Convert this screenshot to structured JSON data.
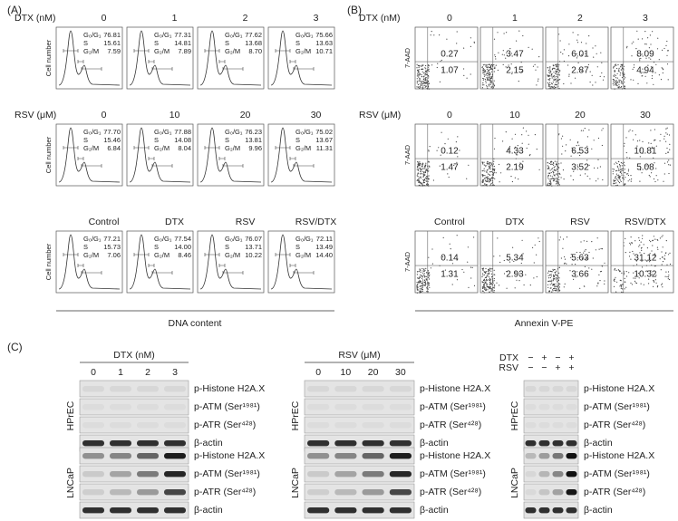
{
  "panel_a": {
    "label": "(A)",
    "x_label": "DNA content",
    "y_label": "Cell number",
    "phase_labels": [
      "G₀/G₁",
      "S",
      "G₂/M"
    ],
    "rows": [
      {
        "title": "DTX (nM)",
        "columns": [
          {
            "name": "0",
            "values": [
              "76.81",
              "15.61",
              "7.59"
            ]
          },
          {
            "name": "1",
            "values": [
              "77.31",
              "14.81",
              "7.89"
            ]
          },
          {
            "name": "2",
            "values": [
              "77.62",
              "13.68",
              "8.70"
            ]
          },
          {
            "name": "3",
            "values": [
              "75.66",
              "13.63",
              "10.71"
            ]
          }
        ]
      },
      {
        "title": "RSV (μM)",
        "columns": [
          {
            "name": "0",
            "values": [
              "77.70",
              "15.46",
              "6.84"
            ]
          },
          {
            "name": "10",
            "values": [
              "77.88",
              "14.08",
              "8.04"
            ]
          },
          {
            "name": "20",
            "values": [
              "76.23",
              "13.81",
              "9.96"
            ]
          },
          {
            "name": "30",
            "values": [
              "75.02",
              "13.67",
              "11.31"
            ]
          }
        ]
      },
      {
        "columns": [
          {
            "name": "Control",
            "values": [
              "77.21",
              "15.73",
              "7.06"
            ]
          },
          {
            "name": "DTX",
            "values": [
              "77.54",
              "14.00",
              "8.46"
            ]
          },
          {
            "name": "RSV",
            "values": [
              "76.07",
              "13.71",
              "10.22"
            ]
          },
          {
            "name": "RSV/DTX",
            "values": [
              "72.11",
              "13.49",
              "14.40"
            ]
          }
        ]
      }
    ]
  },
  "panel_b": {
    "label": "(B)",
    "x_label": "Annexin V-PE",
    "y_label": "7-AAD",
    "rows": [
      {
        "title": "DTX (nM)",
        "columns": [
          {
            "name": "0",
            "late": "0.27",
            "early": "1.07"
          },
          {
            "name": "1",
            "late": "3.47",
            "early": "2.15"
          },
          {
            "name": "2",
            "late": "6.01",
            "early": "2.87"
          },
          {
            "name": "3",
            "late": "8.09",
            "early": "4.94"
          }
        ]
      },
      {
        "title": "RSV (μM)",
        "columns": [
          {
            "name": "0",
            "late": "0.12",
            "early": "1.47"
          },
          {
            "name": "10",
            "late": "4.33",
            "early": "2.19"
          },
          {
            "name": "20",
            "late": "6.53",
            "early": "3.52"
          },
          {
            "name": "30",
            "late": "10.81",
            "early": "5.08"
          }
        ]
      },
      {
        "columns": [
          {
            "name": "Control",
            "late": "0.14",
            "early": "1.31"
          },
          {
            "name": "DTX",
            "late": "5.34",
            "early": "2.93"
          },
          {
            "name": "RSV",
            "late": "5.63",
            "early": "3.66"
          },
          {
            "name": "RSV/DTX",
            "late": "31.12",
            "early": "10.32"
          }
        ]
      }
    ]
  },
  "panel_c": {
    "label": "(C)",
    "groups": [
      {
        "header": "DTX (nM)",
        "lanes": [
          "0",
          "1",
          "2",
          "3"
        ],
        "cells": [
          {
            "name": "HPrEC",
            "bands": [
              "p-Histone H2A.X",
              "p-ATM (Ser¹⁹⁸¹)",
              "p-ATR (Ser⁴²⁸)",
              "β-actin"
            ]
          },
          {
            "name": "LNCaP",
            "bands": [
              "p-Histone H2A.X",
              "p-ATM (Ser¹⁹⁸¹)",
              "p-ATR (Ser⁴²⁸)",
              "β-actin"
            ]
          }
        ]
      },
      {
        "header": "RSV (μM)",
        "lanes": [
          "0",
          "10",
          "20",
          "30"
        ],
        "cells": [
          {
            "name": "HPrEC",
            "bands": [
              "p-Histone H2A.X",
              "p-ATM (Ser¹⁹⁸¹)",
              "p-ATR (Ser⁴²⁸)",
              "β-actin"
            ]
          },
          {
            "name": "LNCaP",
            "bands": [
              "p-Histone H2A.X",
              "p-ATM (Ser¹⁹⁸¹)",
              "p-ATR (Ser⁴²⁸)",
              "β-actin"
            ]
          }
        ]
      },
      {
        "treatments": [
          {
            "name": "DTX",
            "signs": [
              "−",
              "+",
              "−",
              "+"
            ]
          },
          {
            "name": "RSV",
            "signs": [
              "−",
              "−",
              "+",
              "+"
            ]
          }
        ],
        "cells": [
          {
            "name": "HPrEC",
            "bands": [
              "p-Histone H2A.X",
              "p-ATM (Ser¹⁹⁸¹)",
              "p-ATR (Ser⁴²⁸)",
              "β-actin"
            ]
          },
          {
            "name": "LNCaP",
            "bands": [
              "p-Histone H2A.X",
              "p-ATM (Ser¹⁹⁸¹)",
              "p-ATR (Ser⁴²⁸)",
              "β-actin"
            ]
          }
        ]
      }
    ]
  }
}
